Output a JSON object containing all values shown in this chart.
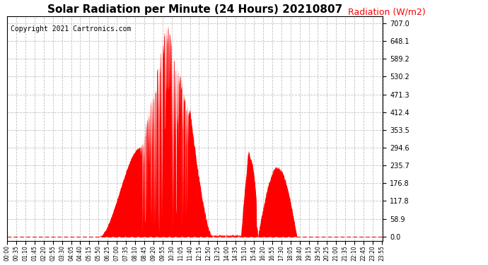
{
  "title": "Solar Radiation per Minute (24 Hours) 20210807",
  "title_fontsize": 11,
  "copyright_text": "Copyright 2021 Cartronics.com",
  "copyright_fontsize": 7,
  "ylabel": "Radiation (W/m2)",
  "ylabel_color": "#ff0000",
  "ylabel_fontsize": 9,
  "background_color": "#ffffff",
  "plot_bg_color": "#ffffff",
  "fill_color": "#ff0000",
  "dashed_line_color": "#ff0000",
  "grid_color": "#bbbbbb",
  "ytick_values": [
    0.0,
    58.9,
    117.8,
    176.8,
    235.7,
    294.6,
    353.5,
    412.4,
    471.3,
    530.2,
    589.2,
    648.1,
    707.0
  ],
  "ymax": 730,
  "ymin": -15,
  "total_minutes": 1440,
  "x_tick_interval": 35
}
